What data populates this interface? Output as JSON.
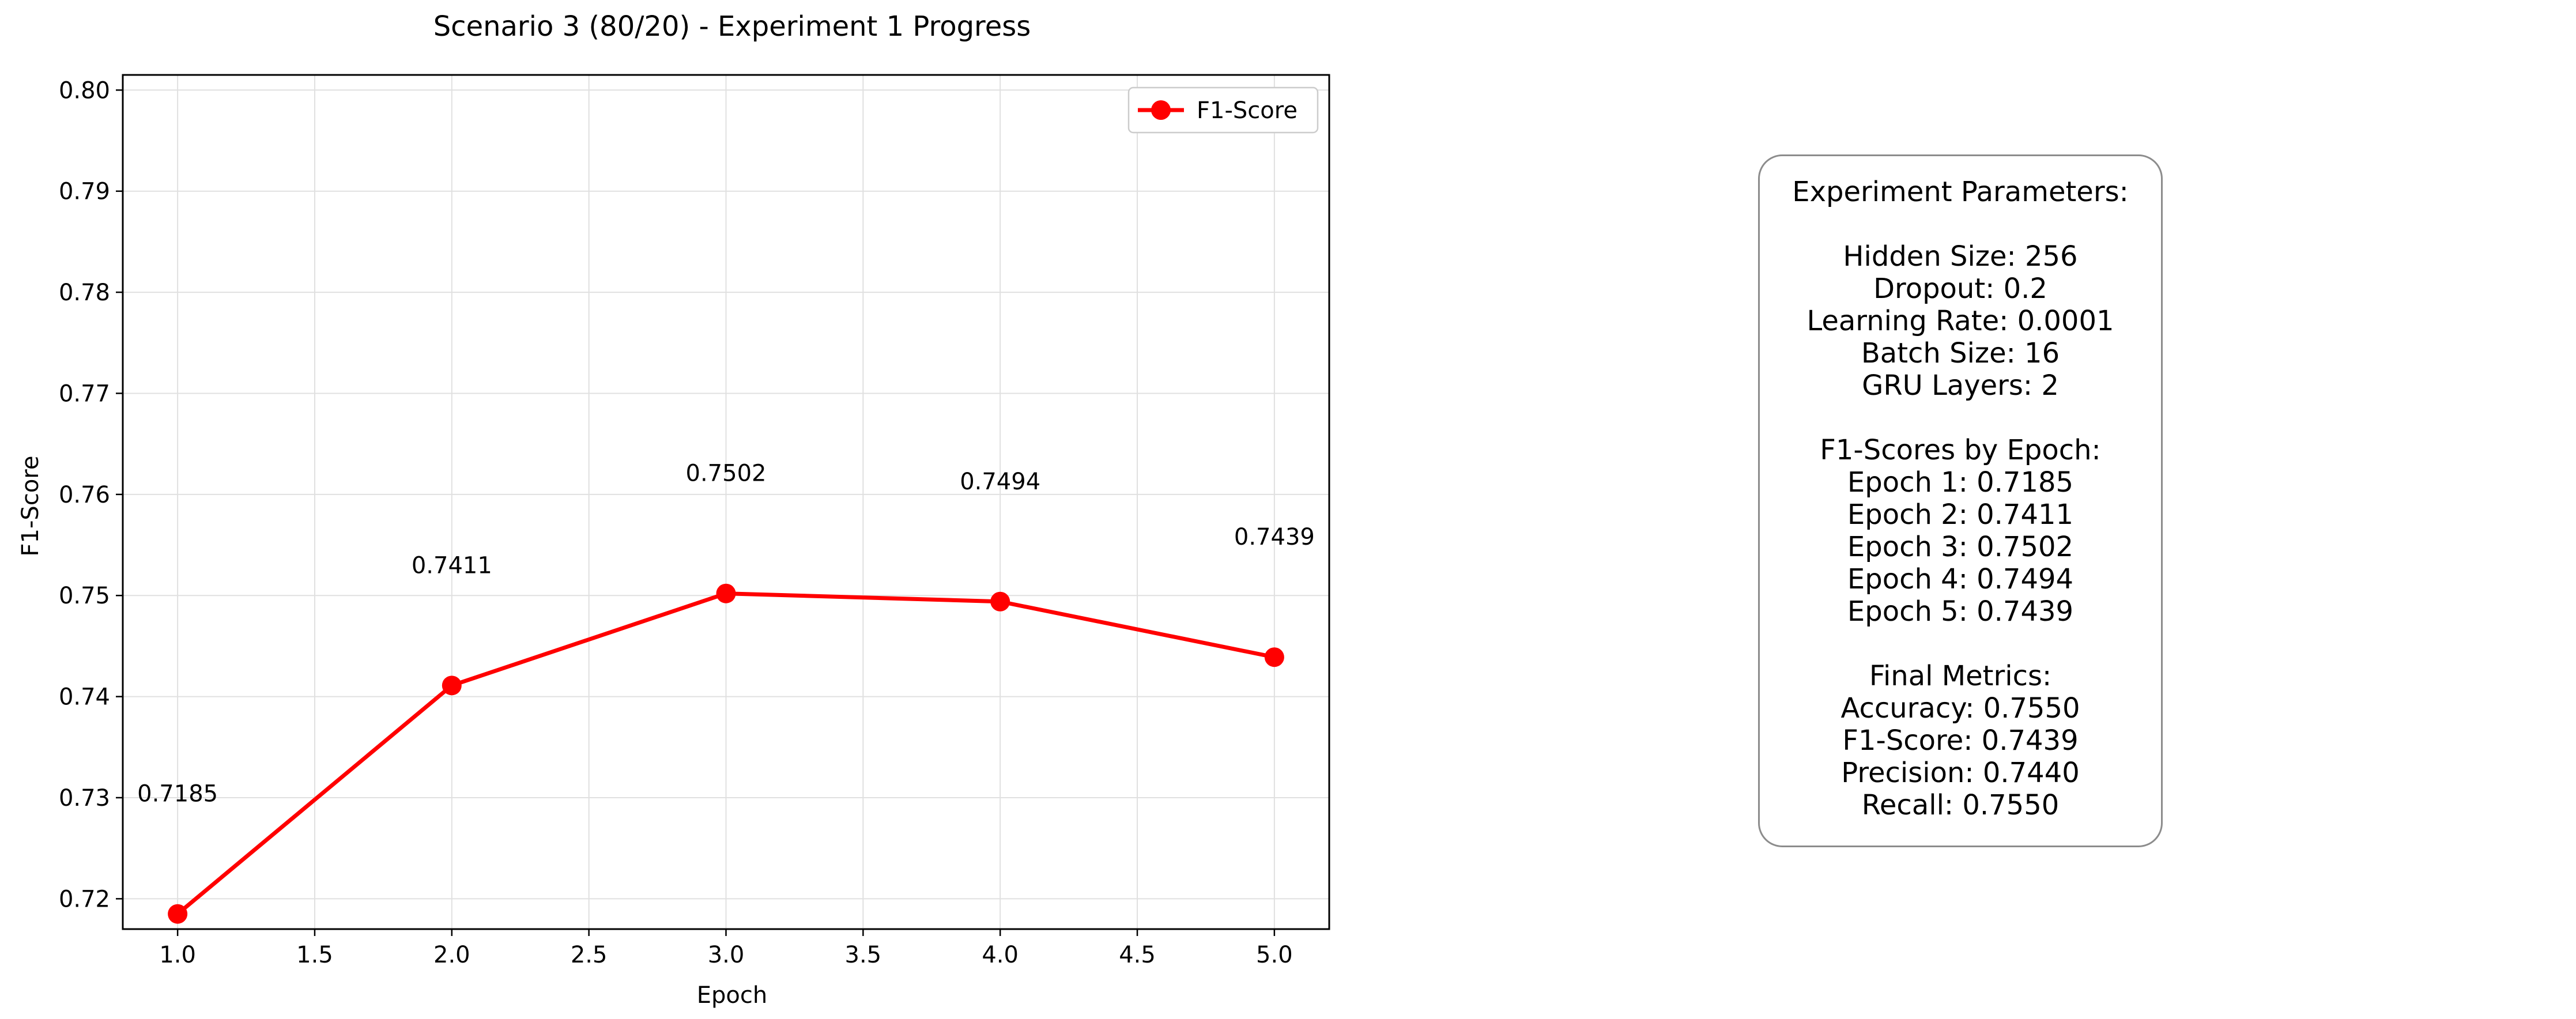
{
  "chart_data": {
    "type": "line",
    "title": "Scenario 3 (80/20) - Experiment 1 Progress",
    "xlabel": "Epoch",
    "ylabel": "F1-Score",
    "xlim": [
      0.8,
      5.2
    ],
    "ylim": [
      0.717,
      0.8015
    ],
    "xticks": [
      "1.0",
      "1.5",
      "2.0",
      "2.5",
      "3.0",
      "3.5",
      "4.0",
      "4.5",
      "5.0"
    ],
    "xtick_values": [
      1.0,
      1.5,
      2.0,
      2.5,
      3.0,
      3.5,
      4.0,
      4.5,
      5.0
    ],
    "yticks": [
      "0.72",
      "0.73",
      "0.74",
      "0.75",
      "0.76",
      "0.77",
      "0.78",
      "0.79",
      "0.80"
    ],
    "ytick_values": [
      0.72,
      0.73,
      0.74,
      0.75,
      0.76,
      0.77,
      0.78,
      0.79,
      0.8
    ],
    "grid": true,
    "legend_position": "top-right",
    "series": [
      {
        "name": "F1-Score",
        "color": "#ff0000",
        "marker": "circle",
        "x": [
          1,
          2,
          3,
          4,
          5
        ],
        "y": [
          0.7185,
          0.7411,
          0.7502,
          0.7494,
          0.7439
        ],
        "labels": [
          "0.7185",
          "0.7411",
          "0.7502",
          "0.7494",
          "0.7439"
        ]
      }
    ]
  },
  "info_box": {
    "lines": [
      "Experiment Parameters:",
      "",
      "Hidden Size: 256",
      "Dropout: 0.2",
      "Learning Rate: 0.0001",
      "Batch Size: 16",
      "GRU Layers: 2",
      "",
      "F1-Scores by Epoch:",
      "Epoch 1: 0.7185",
      "Epoch 2: 0.7411",
      "Epoch 3: 0.7502",
      "Epoch 4: 0.7494",
      "Epoch 5: 0.7439",
      "",
      "Final Metrics:",
      "Accuracy: 0.7550",
      "F1-Score: 0.7439",
      "Precision: 0.7440",
      "Recall: 0.7550"
    ]
  }
}
